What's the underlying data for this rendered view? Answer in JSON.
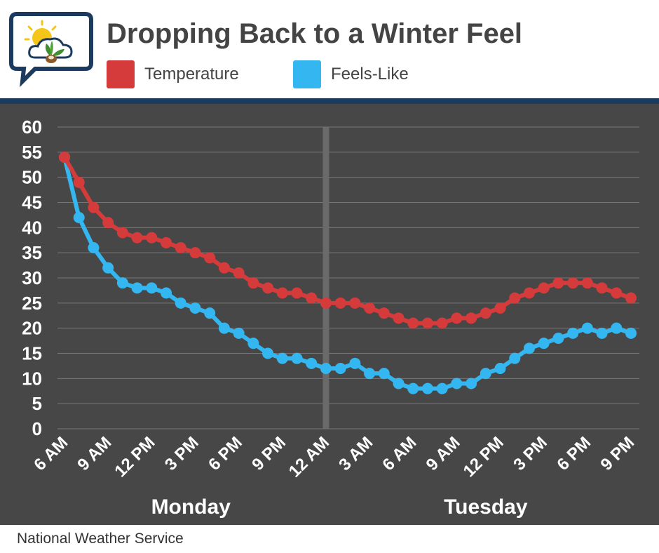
{
  "title": "Dropping Back to a Winter Feel",
  "source": "National Weather Service",
  "colors": {
    "temperature": "#d63b3b",
    "feels_like": "#34b7f1",
    "background": "#474747",
    "band": "#1c3a5e"
  },
  "icons": {
    "logo": "weather-chat-logo-icon"
  },
  "chart_data": {
    "type": "line",
    "title": "Dropping Back to a Winter Feel",
    "xlabel": "",
    "ylabel": "",
    "ylim": [
      0,
      60
    ],
    "yticks": [
      0,
      5,
      10,
      15,
      20,
      25,
      30,
      35,
      40,
      45,
      50,
      55,
      60
    ],
    "x_hours": [
      0,
      1,
      2,
      3,
      4,
      5,
      6,
      7,
      8,
      9,
      10,
      11,
      12,
      13,
      14,
      15,
      16,
      17,
      18,
      19,
      20,
      21,
      22,
      23,
      24,
      25,
      26,
      27,
      28,
      29,
      30,
      31,
      32,
      33,
      34,
      35,
      36,
      37,
      38,
      39
    ],
    "tick_labels": [
      "6 AM",
      "9 AM",
      "12 PM",
      "3 PM",
      "6 PM",
      "9 PM",
      "12 AM",
      "3 AM",
      "6 AM",
      "9 AM",
      "12 PM",
      "3 PM",
      "6 PM",
      "9 PM"
    ],
    "tick_hours": [
      0,
      3,
      6,
      9,
      12,
      15,
      18,
      21,
      24,
      27,
      30,
      33,
      36,
      39
    ],
    "day_labels": [
      {
        "label": "Monday",
        "center_hour": 8.7
      },
      {
        "label": "Tuesday",
        "center_hour": 29.0
      }
    ],
    "divider_hour": 18,
    "series": [
      {
        "name": "Temperature",
        "color": "#d63b3b",
        "values": [
          54,
          49,
          44,
          41,
          39,
          38,
          38,
          37,
          36,
          35,
          34,
          32,
          31,
          29,
          28,
          27,
          27,
          26,
          25,
          25,
          25,
          24,
          23,
          22,
          21,
          21,
          21,
          22,
          22,
          23,
          24,
          26,
          27,
          28,
          29,
          29,
          29,
          28,
          27,
          26
        ]
      },
      {
        "name": "Feels-Like",
        "color": "#34b7f1",
        "values": [
          54,
          42,
          36,
          32,
          29,
          28,
          28,
          27,
          25,
          24,
          23,
          20,
          19,
          17,
          15,
          14,
          14,
          13,
          12,
          12,
          13,
          11,
          11,
          9,
          8,
          8,
          8,
          9,
          9,
          11,
          12,
          14,
          16,
          17,
          18,
          19,
          20,
          19,
          20,
          19
        ]
      }
    ],
    "legend_position": "top"
  }
}
